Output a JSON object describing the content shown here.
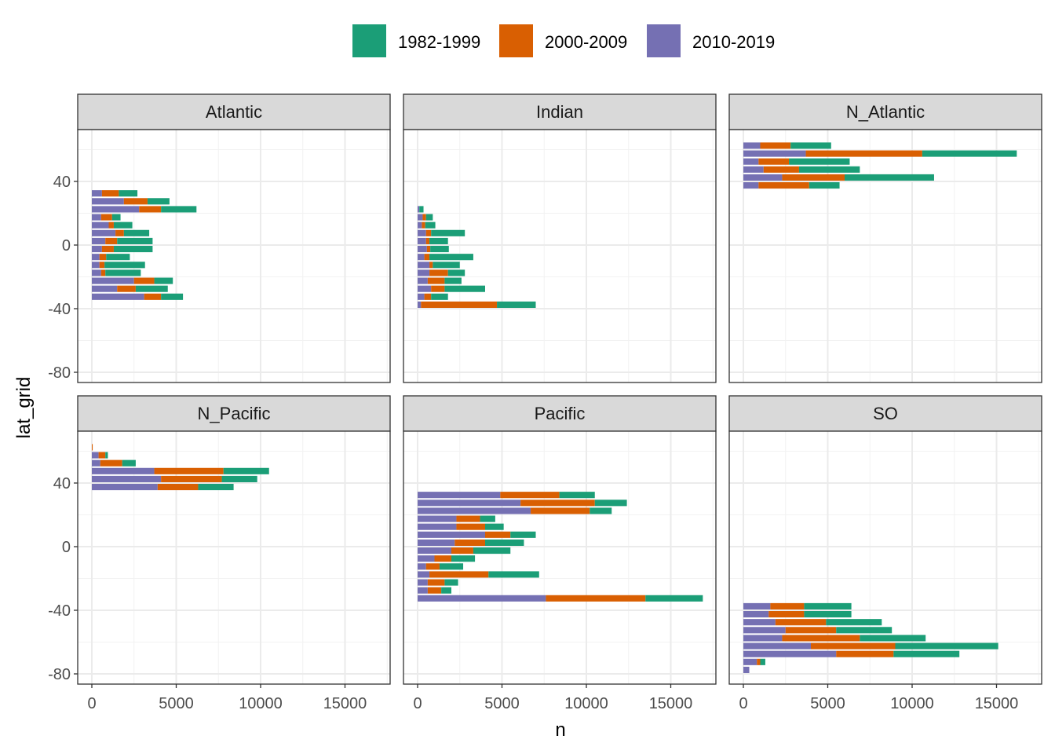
{
  "chart_data": {
    "type": "bar",
    "orientation": "horizontal",
    "stacked": true,
    "xlabel": "n",
    "ylabel": "lat_grid",
    "xlim": [
      -800,
      17500
    ],
    "ylim": [
      -88,
      72
    ],
    "x_ticks": [
      0,
      5000,
      10000,
      15000
    ],
    "x_tick_labels": [
      "0",
      "5000",
      "10000",
      "15000"
    ],
    "y_ticks": [
      40,
      0,
      -40,
      -80
    ],
    "y_tick_labels": [
      "40",
      "0",
      "-40",
      "-80"
    ],
    "bar_height": 4,
    "legend_position": "top",
    "series": [
      {
        "name": "2010-2019",
        "color": "#7570B3"
      },
      {
        "name": "2000-2009",
        "color": "#D95F02"
      },
      {
        "name": "1982-1999",
        "color": "#1B9E77"
      }
    ],
    "legend": [
      {
        "label": "1982-1999",
        "color": "#1B9E77"
      },
      {
        "label": "2000-2009",
        "color": "#D95F02"
      },
      {
        "label": "2010-2019",
        "color": "#7570B3"
      }
    ],
    "panels": [
      {
        "name": "Atlantic",
        "bars": [
          {
            "lat": 32.5,
            "values": [
              600,
              1000,
              1100
            ]
          },
          {
            "lat": 27.5,
            "values": [
              1900,
              1400,
              1300
            ]
          },
          {
            "lat": 22.5,
            "values": [
              2800,
              1300,
              2100
            ]
          },
          {
            "lat": 17.5,
            "values": [
              550,
              650,
              500
            ]
          },
          {
            "lat": 12.5,
            "values": [
              1000,
              300,
              1100
            ]
          },
          {
            "lat": 7.5,
            "values": [
              1400,
              500,
              1500
            ]
          },
          {
            "lat": 2.5,
            "values": [
              800,
              700,
              2100
            ]
          },
          {
            "lat": -2.5,
            "values": [
              600,
              700,
              2300
            ]
          },
          {
            "lat": -7.5,
            "values": [
              450,
              400,
              1400
            ]
          },
          {
            "lat": -12.5,
            "values": [
              450,
              300,
              2400
            ]
          },
          {
            "lat": -17.5,
            "values": [
              550,
              250,
              2100
            ]
          },
          {
            "lat": -22.5,
            "values": [
              2500,
              1200,
              1100
            ]
          },
          {
            "lat": -27.5,
            "values": [
              1500,
              1100,
              1900
            ]
          },
          {
            "lat": -32.5,
            "values": [
              3100,
              1000,
              1300
            ]
          }
        ]
      },
      {
        "name": "Indian",
        "bars": [
          {
            "lat": 22.5,
            "values": [
              100,
              0,
              250
            ]
          },
          {
            "lat": 17.5,
            "values": [
              300,
              200,
              400
            ]
          },
          {
            "lat": 12.5,
            "values": [
              250,
              200,
              600
            ]
          },
          {
            "lat": 7.5,
            "values": [
              500,
              300,
              2000
            ]
          },
          {
            "lat": 2.5,
            "values": [
              500,
              200,
              1100
            ]
          },
          {
            "lat": -2.5,
            "values": [
              550,
              200,
              1100
            ]
          },
          {
            "lat": -7.5,
            "values": [
              400,
              300,
              2600
            ]
          },
          {
            "lat": -12.5,
            "values": [
              700,
              200,
              1600
            ]
          },
          {
            "lat": -17.5,
            "values": [
              700,
              1100,
              1000
            ]
          },
          {
            "lat": -22.5,
            "values": [
              600,
              1000,
              1000
            ]
          },
          {
            "lat": -27.5,
            "values": [
              800,
              800,
              2400
            ]
          },
          {
            "lat": -32.5,
            "values": [
              400,
              400,
              1000
            ]
          },
          {
            "lat": -37.5,
            "values": [
              200,
              4500,
              2300
            ]
          }
        ]
      },
      {
        "name": "N_Atlantic",
        "bars": [
          {
            "lat": 62.5,
            "values": [
              1000,
              1800,
              2400
            ]
          },
          {
            "lat": 57.5,
            "values": [
              3700,
              6900,
              5600
            ]
          },
          {
            "lat": 52.5,
            "values": [
              900,
              1800,
              3600
            ]
          },
          {
            "lat": 47.5,
            "values": [
              1200,
              2100,
              3600
            ]
          },
          {
            "lat": 42.5,
            "values": [
              2300,
              3700,
              5300
            ]
          },
          {
            "lat": 37.5,
            "values": [
              900,
              3000,
              1800
            ]
          }
        ]
      },
      {
        "name": "N_Pacific",
        "bars": [
          {
            "lat": 62.5,
            "values": [
              0,
              50,
              0
            ]
          },
          {
            "lat": 57.5,
            "values": [
              400,
              400,
              150
            ]
          },
          {
            "lat": 52.5,
            "values": [
              500,
              1300,
              800
            ]
          },
          {
            "lat": 47.5,
            "values": [
              3700,
              4100,
              2700
            ]
          },
          {
            "lat": 42.5,
            "values": [
              4100,
              3600,
              2100
            ]
          },
          {
            "lat": 37.5,
            "values": [
              3900,
              2400,
              2100
            ]
          }
        ]
      },
      {
        "name": "Pacific",
        "bars": [
          {
            "lat": 32.5,
            "values": [
              4900,
              3500,
              2100
            ]
          },
          {
            "lat": 27.5,
            "values": [
              6100,
              4400,
              1900
            ]
          },
          {
            "lat": 22.5,
            "values": [
              6700,
              3500,
              1300
            ]
          },
          {
            "lat": 17.5,
            "values": [
              2300,
              1400,
              900
            ]
          },
          {
            "lat": 12.5,
            "values": [
              2300,
              1700,
              1100
            ]
          },
          {
            "lat": 7.5,
            "values": [
              4000,
              1500,
              1500
            ]
          },
          {
            "lat": 2.5,
            "values": [
              2200,
              1800,
              2300
            ]
          },
          {
            "lat": -2.5,
            "values": [
              2000,
              1300,
              2200
            ]
          },
          {
            "lat": -7.5,
            "values": [
              1000,
              1000,
              1400
            ]
          },
          {
            "lat": -12.5,
            "values": [
              500,
              800,
              1400
            ]
          },
          {
            "lat": -17.5,
            "values": [
              700,
              3500,
              3000
            ]
          },
          {
            "lat": -22.5,
            "values": [
              600,
              1000,
              800
            ]
          },
          {
            "lat": -27.5,
            "values": [
              600,
              800,
              600
            ]
          },
          {
            "lat": -32.5,
            "values": [
              7600,
              5900,
              3400
            ]
          }
        ]
      },
      {
        "name": "SO",
        "bars": [
          {
            "lat": -37.5,
            "values": [
              1600,
              2000,
              2800
            ]
          },
          {
            "lat": -42.5,
            "values": [
              1500,
              2100,
              2800
            ]
          },
          {
            "lat": -47.5,
            "values": [
              1900,
              3000,
              3300
            ]
          },
          {
            "lat": -52.5,
            "values": [
              2500,
              3000,
              3300
            ]
          },
          {
            "lat": -57.5,
            "values": [
              2300,
              4600,
              3900
            ]
          },
          {
            "lat": -62.5,
            "values": [
              4000,
              5000,
              6100
            ]
          },
          {
            "lat": -67.5,
            "values": [
              5500,
              3400,
              3900
            ]
          },
          {
            "lat": -72.5,
            "values": [
              800,
              200,
              300
            ]
          },
          {
            "lat": -77.5,
            "values": [
              350,
              0,
              0
            ]
          }
        ]
      }
    ]
  }
}
